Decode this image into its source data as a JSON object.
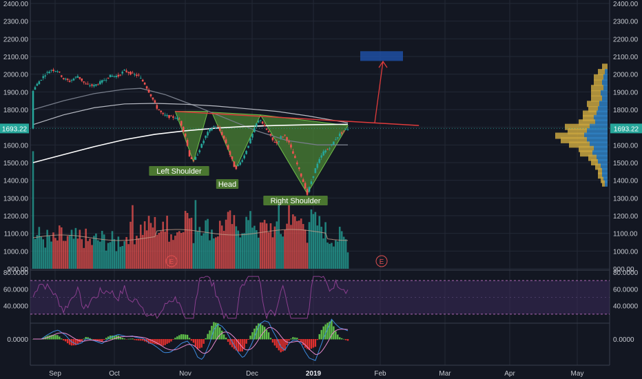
{
  "colors": {
    "background": "#131722",
    "grid": "#232836",
    "up": "#26a69a",
    "down": "#ef5350",
    "neckline": "#e03c3c",
    "pattern_fill": "#4e8a34",
    "target_box": "#1e4fa3",
    "rsi_band": "#3a2a5a",
    "rsi_line": "#8b3f8f",
    "price_tag": "#26a69a",
    "ma_white": "#ffffff",
    "ma_grey": "#777d8a"
  },
  "chart_data": {
    "type": "candlestick",
    "title": "",
    "x_axis": {
      "labels": [
        "Sep",
        "Oct",
        "Nov",
        "Dec",
        "2019",
        "Feb",
        "Mar",
        "Apr",
        "May"
      ],
      "emphasized": "2019"
    },
    "price_axis": {
      "ylim": [
        900,
        2400
      ],
      "ticks": [
        "2400.00",
        "2300.00",
        "2200.00",
        "2100.00",
        "2000.00",
        "1900.00",
        "1800.00",
        "1700.00",
        "1600.00",
        "1500.00",
        "1400.00",
        "1300.00",
        "1200.00",
        "1100.00",
        "1000.00",
        "900.00"
      ],
      "last_price": "1693.22"
    },
    "rsi_axis": {
      "ylim": [
        20,
        80
      ],
      "ticks": [
        "80.0000",
        "60.0000",
        "40.0000"
      ],
      "band": [
        30,
        70
      ]
    },
    "macd_axis": {
      "ticks": [
        "0.0000"
      ]
    },
    "price_path": [
      [
        0,
        1910
      ],
      [
        3,
        1960
      ],
      [
        6,
        2000
      ],
      [
        9,
        2025
      ],
      [
        12,
        2020
      ],
      [
        15,
        1975
      ],
      [
        18,
        1960
      ],
      [
        22,
        1990
      ],
      [
        26,
        1940
      ],
      [
        30,
        1935
      ],
      [
        34,
        1960
      ],
      [
        38,
        1990
      ],
      [
        42,
        1990
      ],
      [
        45,
        2020
      ],
      [
        48,
        2005
      ],
      [
        52,
        1990
      ],
      [
        55,
        1945
      ],
      [
        58,
        1880
      ],
      [
        61,
        1810
      ],
      [
        64,
        1770
      ],
      [
        67,
        1760
      ],
      [
        70,
        1755
      ],
      [
        72,
        1745
      ],
      [
        75,
        1650
      ],
      [
        77,
        1540
      ],
      [
        79,
        1505
      ],
      [
        81,
        1550
      ],
      [
        83,
        1600
      ],
      [
        85,
        1650
      ],
      [
        87,
        1685
      ],
      [
        89,
        1705
      ],
      [
        91,
        1700
      ],
      [
        93,
        1660
      ],
      [
        95,
        1610
      ],
      [
        97,
        1545
      ],
      [
        99,
        1480
      ],
      [
        100,
        1470
      ],
      [
        102,
        1500
      ],
      [
        104,
        1540
      ],
      [
        106,
        1600
      ],
      [
        108,
        1660
      ],
      [
        110,
        1720
      ],
      [
        112,
        1745
      ],
      [
        114,
        1700
      ],
      [
        116,
        1670
      ],
      [
        118,
        1625
      ],
      [
        120,
        1610
      ],
      [
        122,
        1645
      ],
      [
        124,
        1655
      ],
      [
        126,
        1610
      ],
      [
        128,
        1550
      ],
      [
        130,
        1490
      ],
      [
        132,
        1425
      ],
      [
        134,
        1360
      ],
      [
        135,
        1320
      ],
      [
        137,
        1395
      ],
      [
        139,
        1465
      ],
      [
        141,
        1515
      ],
      [
        143,
        1560
      ],
      [
        145,
        1575
      ],
      [
        147,
        1600
      ],
      [
        149,
        1635
      ],
      [
        151,
        1660
      ],
      [
        153,
        1680
      ],
      [
        155,
        1693
      ]
    ],
    "ma_white": [
      [
        0,
        1500
      ],
      [
        15,
        1545
      ],
      [
        30,
        1590
      ],
      [
        45,
        1630
      ],
      [
        60,
        1660
      ],
      [
        75,
        1680
      ],
      [
        90,
        1695
      ],
      [
        105,
        1705
      ],
      [
        120,
        1710
      ],
      [
        135,
        1714
      ],
      [
        155,
        1717
      ]
    ],
    "ma_grey_upper": [
      [
        0,
        1715
      ],
      [
        15,
        1770
      ],
      [
        30,
        1810
      ],
      [
        45,
        1832
      ],
      [
        60,
        1835
      ],
      [
        75,
        1830
      ],
      [
        90,
        1820
      ],
      [
        105,
        1805
      ],
      [
        120,
        1790
      ],
      [
        135,
        1765
      ],
      [
        155,
        1725
      ]
    ],
    "ma_grey_lower": [
      [
        0,
        1800
      ],
      [
        15,
        1850
      ],
      [
        30,
        1890
      ],
      [
        45,
        1915
      ],
      [
        53,
        1920
      ],
      [
        65,
        1885
      ],
      [
        80,
        1820
      ],
      [
        95,
        1750
      ],
      [
        110,
        1680
      ],
      [
        125,
        1625
      ],
      [
        140,
        1600
      ],
      [
        155,
        1600
      ]
    ],
    "neckline": [
      [
        70,
        1790
      ],
      [
        190,
        1710
      ]
    ],
    "pattern_triangles": [
      {
        "label": "Left Shoulder",
        "points": [
          [
            70,
            1790
          ],
          [
            86,
            1790
          ],
          [
            79,
            1505
          ]
        ]
      },
      {
        "label": "Head",
        "points": [
          [
            88,
            1785
          ],
          [
            112,
            1770
          ],
          [
            100,
            1470
          ]
        ]
      },
      {
        "label": "Right Shoulder",
        "points": [
          [
            112,
            1770
          ],
          [
            155,
            1710
          ],
          [
            135,
            1325
          ]
        ]
      }
    ],
    "target": {
      "box": [
        [
          155,
          2130
        ],
        [
          170,
          2075
        ]
      ],
      "arrow_from": [
        160,
        1725
      ],
      "arrow_to": [
        165,
        2080
      ]
    },
    "annotations": [
      "Left Shoulder",
      "Head",
      "Right Shoulder"
    ],
    "earnings_markers": [
      {
        "x": 80,
        "label": "E"
      },
      {
        "x": 165,
        "label": "E"
      }
    ],
    "volume_profile": [
      [
        2040,
        8,
        0
      ],
      [
        2010,
        10,
        4
      ],
      [
        1980,
        14,
        6
      ],
      [
        1950,
        12,
        8
      ],
      [
        1920,
        18,
        6
      ],
      [
        1890,
        14,
        10
      ],
      [
        1860,
        16,
        8
      ],
      [
        1830,
        18,
        12
      ],
      [
        1800,
        14,
        14
      ],
      [
        1775,
        20,
        16
      ],
      [
        1750,
        16,
        20
      ],
      [
        1725,
        24,
        18
      ],
      [
        1700,
        36,
        26
      ],
      [
        1675,
        28,
        30
      ],
      [
        1650,
        42,
        34
      ],
      [
        1625,
        38,
        30
      ],
      [
        1600,
        30,
        26
      ],
      [
        1575,
        22,
        20
      ],
      [
        1550,
        18,
        22
      ],
      [
        1525,
        12,
        16
      ],
      [
        1500,
        10,
        14
      ],
      [
        1475,
        8,
        10
      ],
      [
        1450,
        6,
        8
      ],
      [
        1425,
        6,
        8
      ],
      [
        1400,
        4,
        6
      ],
      [
        1380,
        4,
        4
      ]
    ]
  }
}
